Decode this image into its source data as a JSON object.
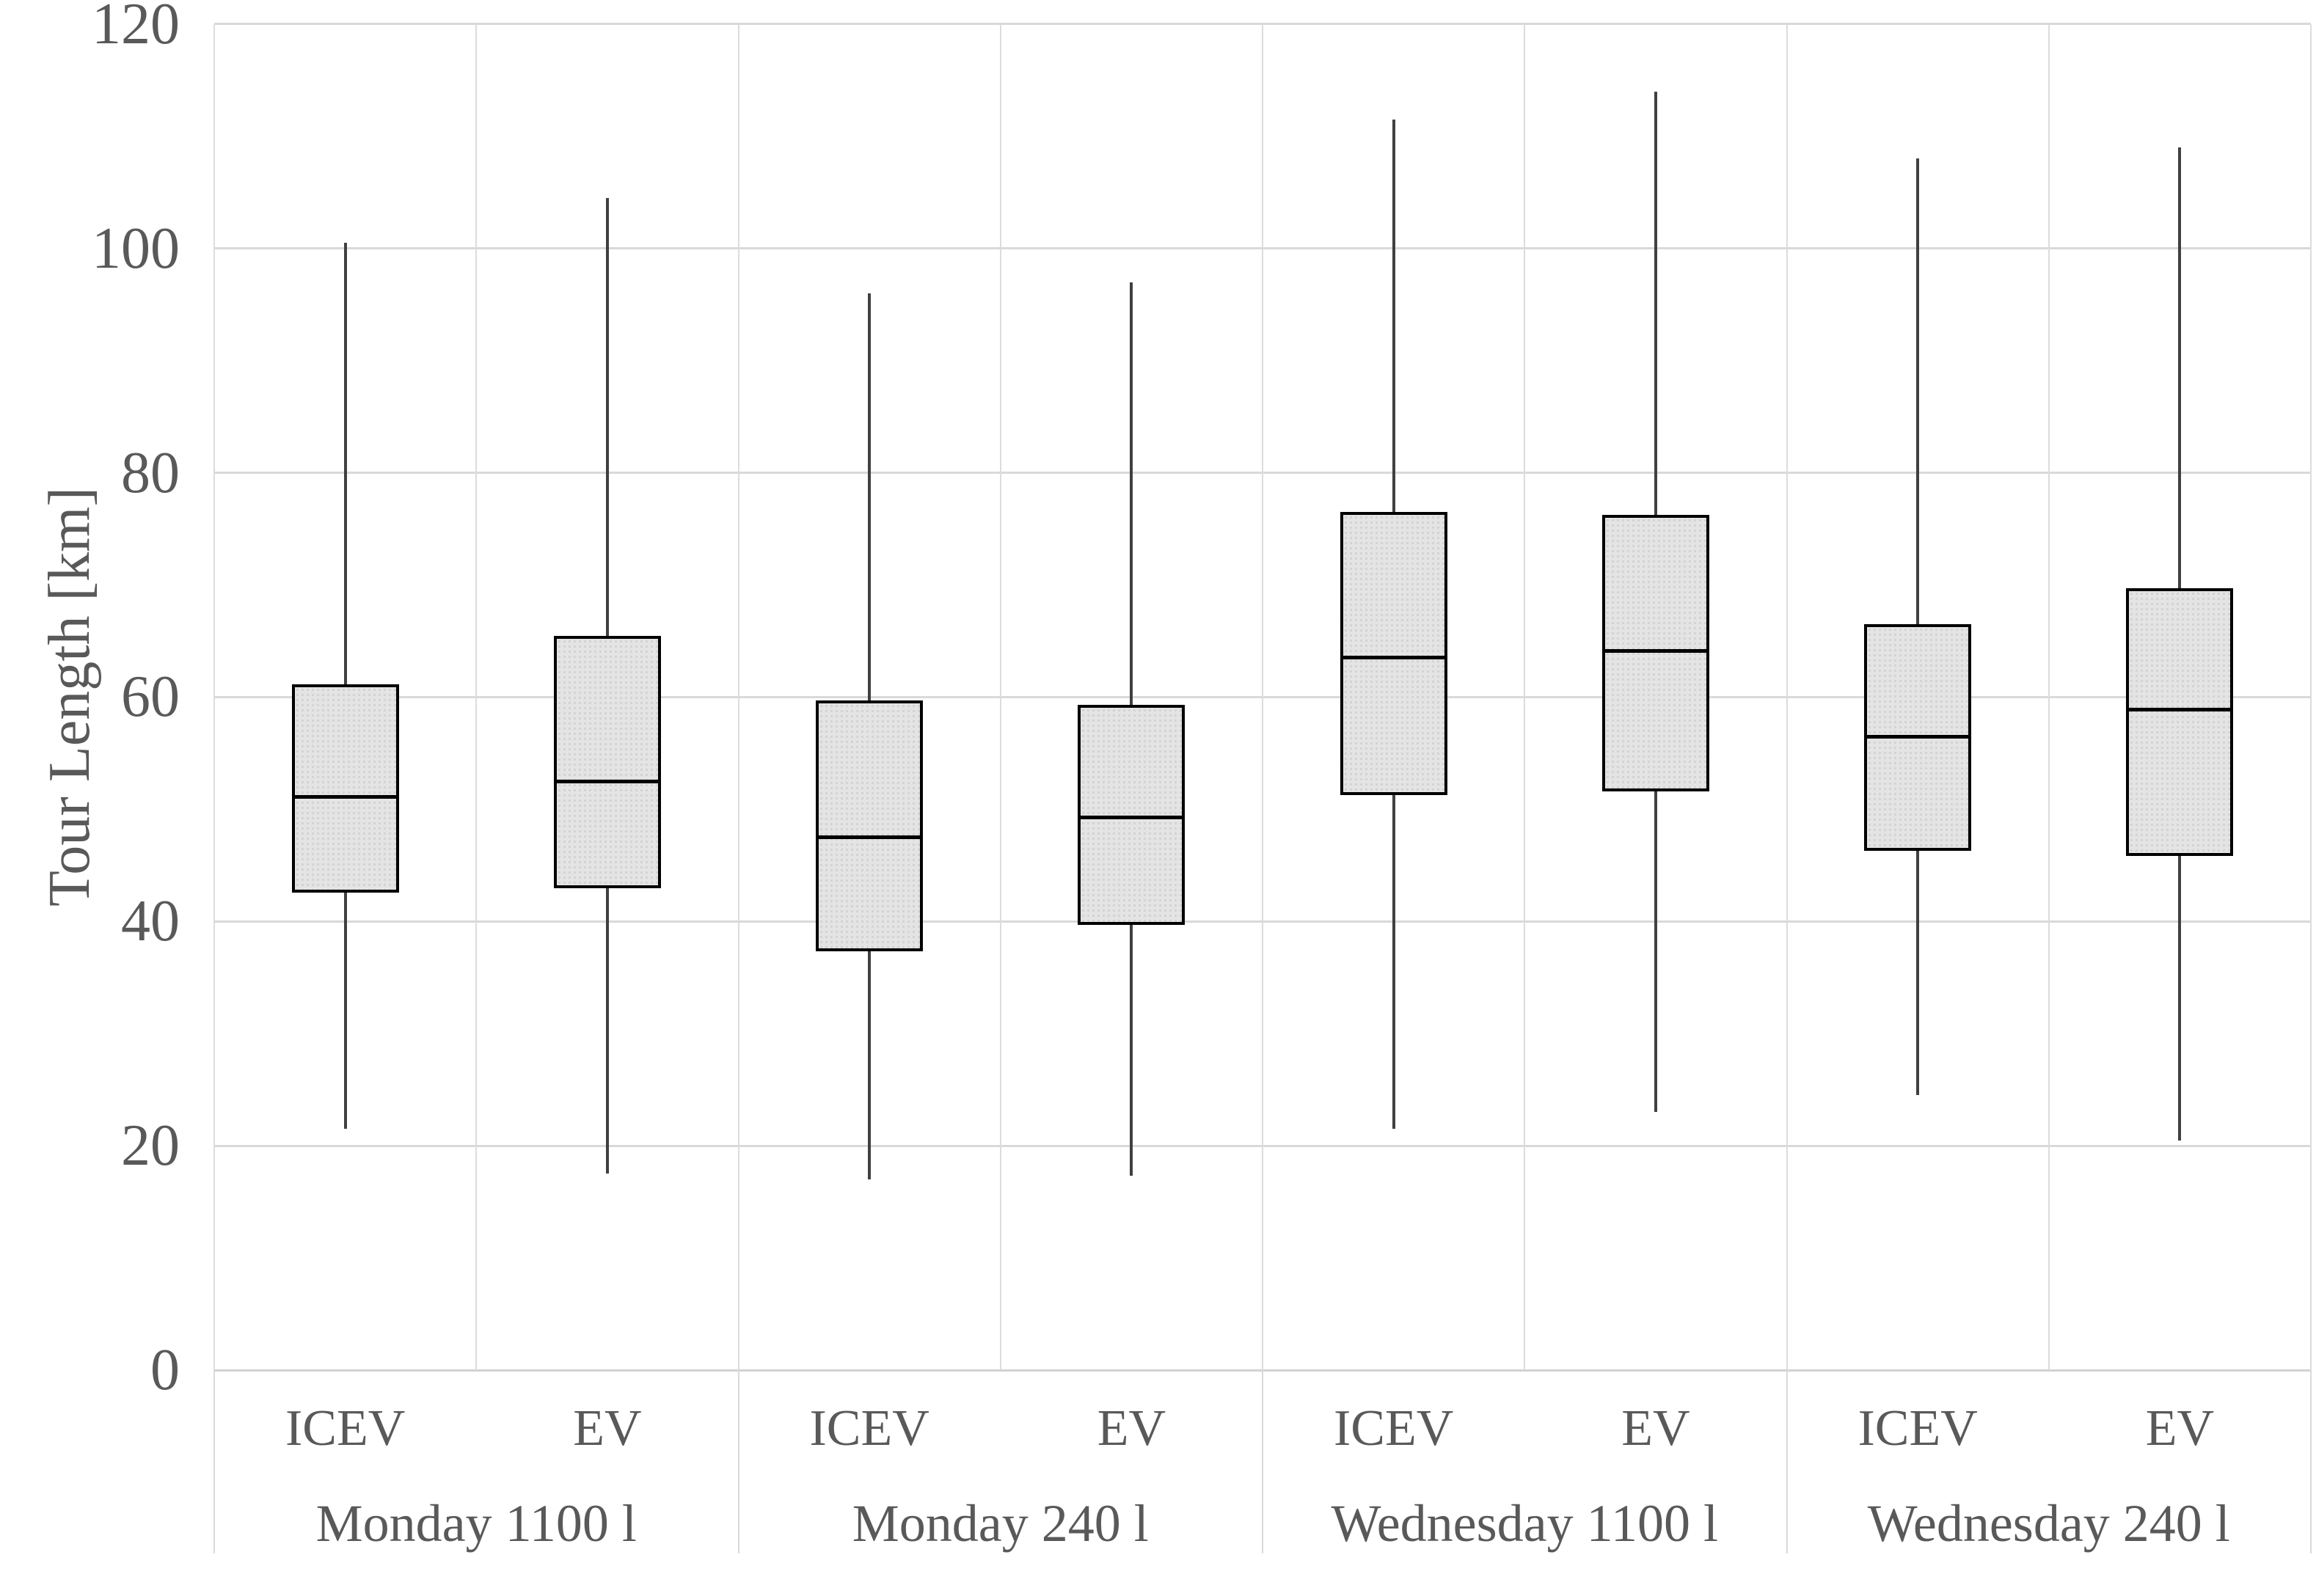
{
  "chart_data": {
    "type": "boxplot",
    "title": "",
    "xlabel": "",
    "ylabel": "Tour Length [km]",
    "ylim": [
      0,
      120
    ],
    "yticks": [
      0,
      20,
      40,
      60,
      80,
      100,
      120
    ],
    "grid": "horizontal gridlines every 20; vertical separators between category slots; no whisker caps",
    "legend": "none",
    "groups": [
      {
        "label": "Monday 1100 l",
        "boxes": [
          {
            "label": "ICEV",
            "min": 21.5,
            "q1": 42.7,
            "median": 51.1,
            "q3": 61.0,
            "max": 100.5
          },
          {
            "label": "EV",
            "min": 17.5,
            "q1": 43.1,
            "median": 52.5,
            "q3": 65.3,
            "max": 104.5
          }
        ]
      },
      {
        "label": "Monday 240 l",
        "boxes": [
          {
            "label": "ICEV",
            "min": 17.0,
            "q1": 37.5,
            "median": 47.5,
            "q3": 59.6,
            "max": 96.0
          },
          {
            "label": "EV",
            "min": 17.3,
            "q1": 39.8,
            "median": 49.3,
            "q3": 59.2,
            "max": 97.0
          }
        ]
      },
      {
        "label": "Wednesday 1100 l",
        "boxes": [
          {
            "label": "ICEV",
            "min": 21.5,
            "q1": 51.4,
            "median": 63.5,
            "q3": 76.4,
            "max": 111.5
          },
          {
            "label": "EV",
            "min": 23.0,
            "q1": 51.7,
            "median": 64.1,
            "q3": 76.1,
            "max": 114.0
          }
        ]
      },
      {
        "label": "Wednesday 240 l",
        "boxes": [
          {
            "label": "ICEV",
            "min": 24.5,
            "q1": 46.4,
            "median": 56.5,
            "q3": 66.4,
            "max": 108.0
          },
          {
            "label": "EV",
            "min": 20.5,
            "q1": 46.0,
            "median": 58.9,
            "q3": 69.6,
            "max": 109.0
          }
        ]
      }
    ]
  },
  "styles": {
    "background": "#ffffff",
    "box_fill": "#e4e4e4",
    "box_dot": "#d2d2d2",
    "box_border": "#000000",
    "median_color": "#000000",
    "whisker_color": "#404040",
    "gridline_color": "#d9d9d9",
    "text_color": "#595959"
  }
}
